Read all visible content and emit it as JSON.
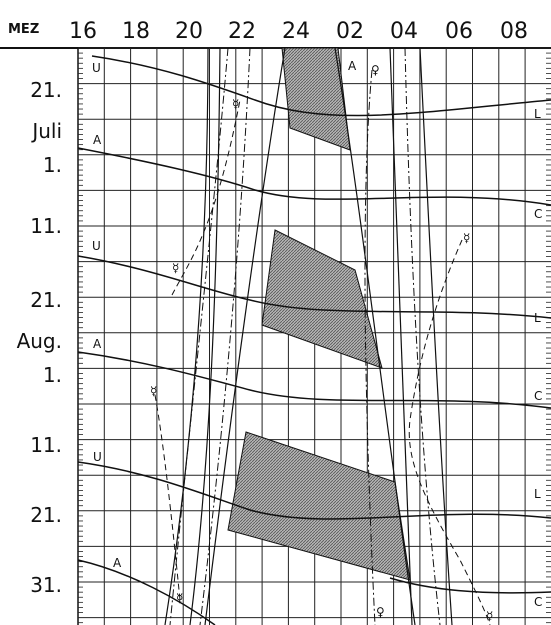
{
  "header": {
    "timezone": "MEZ",
    "hours": [
      "16",
      "18",
      "20",
      "22",
      "24",
      "02",
      "04",
      "06",
      "08"
    ]
  },
  "dates": [
    "21.",
    "Juli",
    "1.",
    "11.",
    "21.",
    "Aug.",
    "1.",
    "11.",
    "21.",
    "31."
  ],
  "markers": {
    "left": [
      "U",
      "A",
      "U",
      "A",
      "U",
      "A"
    ],
    "right": [
      "L",
      "C",
      "L",
      "C",
      "L",
      "C"
    ],
    "top": [
      "A"
    ]
  },
  "symbols": {
    "mercury": [
      "☿",
      "☿",
      "☿",
      "☿",
      "☿",
      "☿"
    ],
    "venus": [
      "♀",
      "♀"
    ]
  },
  "colors": {
    "ink": "#111111",
    "grid": "#222222",
    "shade": "#9a9a9a",
    "paper": "#ffffff"
  }
}
